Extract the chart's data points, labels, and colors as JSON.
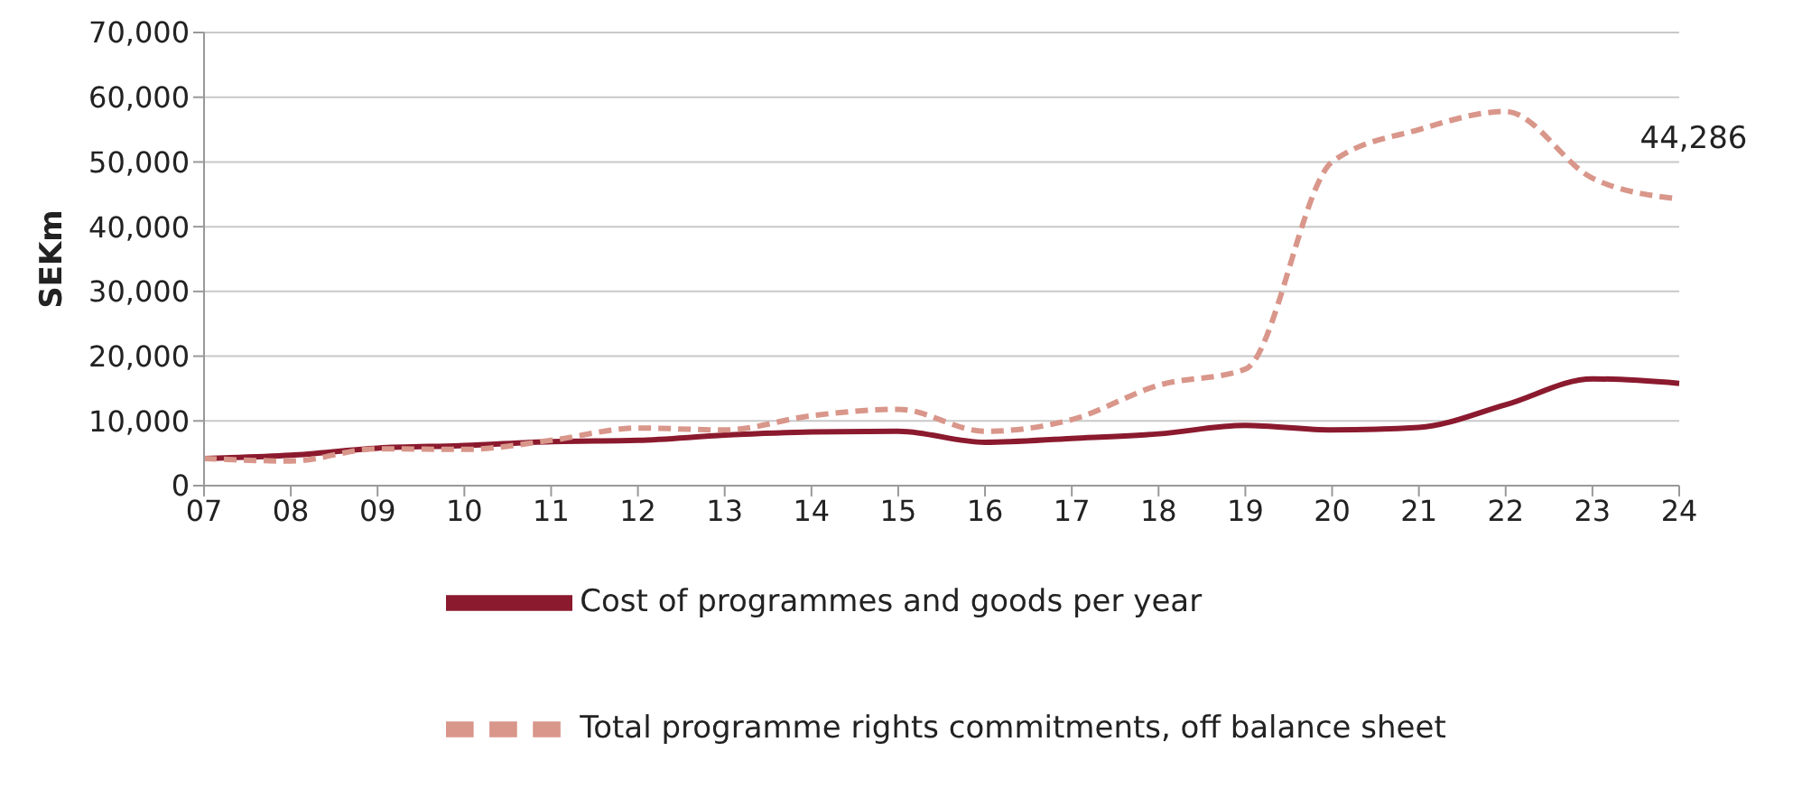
{
  "chart_data": {
    "type": "line",
    "ylabel": "SEKm",
    "categories": [
      "07",
      "08",
      "09",
      "10",
      "11",
      "12",
      "13",
      "14",
      "15",
      "16",
      "17",
      "18",
      "19",
      "20",
      "21",
      "22",
      "23",
      "24"
    ],
    "series": [
      {
        "name": "Cost of programmes and goods per year",
        "color": "#8b1a2e",
        "line_style": "solid",
        "values": [
          4200,
          4700,
          5800,
          6200,
          6800,
          7000,
          7800,
          8300,
          8400,
          6700,
          7300,
          8000,
          9300,
          8600,
          9000,
          12500,
          16500,
          15800
        ]
      },
      {
        "name": "Total programme rights commitments, off balance sheet",
        "color": "#d9968a",
        "line_style": "dashed",
        "values": [
          4200,
          3800,
          5700,
          5600,
          7000,
          8900,
          8600,
          10800,
          11800,
          8400,
          10200,
          15500,
          18000,
          50000,
          55000,
          57800,
          47500,
          44286
        ],
        "value_labels": [
          null,
          null,
          null,
          null,
          null,
          null,
          null,
          null,
          null,
          null,
          null,
          null,
          null,
          null,
          null,
          null,
          null,
          "44,286"
        ]
      }
    ],
    "ylim": [
      0,
      70000
    ],
    "yticks": [
      {
        "value": 0,
        "label": "0"
      },
      {
        "value": 10000,
        "label": "10,000"
      },
      {
        "value": 20000,
        "label": "20,000"
      },
      {
        "value": 30000,
        "label": "30,000"
      },
      {
        "value": 40000,
        "label": "40,000"
      },
      {
        "value": 50000,
        "label": "50,000"
      },
      {
        "value": 60000,
        "label": "60,000"
      },
      {
        "value": 70000,
        "label": "70,000"
      }
    ],
    "grid": "y",
    "legend": "bottom",
    "marker": "none"
  }
}
